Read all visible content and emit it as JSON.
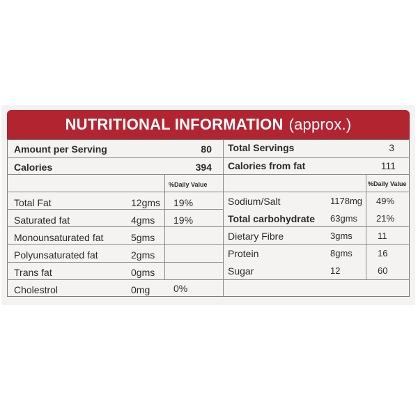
{
  "header": {
    "title": "NUTRITIONAL INFORMATION",
    "suffix": "(approx.)"
  },
  "top": {
    "amount_label": "Amount per Serving",
    "amount_value": "80",
    "calories_label": "Calories",
    "calories_value": "394",
    "servings_label": "Total Servings",
    "servings_value": "3",
    "cal_fat_label": "Calories from fat",
    "cal_fat_value": "111"
  },
  "dv_header": "%Daily Value",
  "left_rows": [
    {
      "name": "Total Fat",
      "qty": "12gms",
      "dv": "19%"
    },
    {
      "name": "Saturated fat",
      "qty": "4gms",
      "dv": "19%"
    },
    {
      "name": "Monounsaturated fat",
      "qty": "5gms",
      "dv": ""
    },
    {
      "name": "Polyunsaturated fat",
      "qty": "2gms",
      "dv": ""
    },
    {
      "name": "Trans fat",
      "qty": "0gms",
      "dv": ""
    },
    {
      "name": "Cholestrol",
      "qty": "0mg",
      "dv": "0%"
    }
  ],
  "right_rows": [
    {
      "name": "Sodium/Salt",
      "qty": "1178mg",
      "dv": "49%"
    },
    {
      "name": "Total carbohydrate",
      "qty": "63gms",
      "dv": "21%"
    },
    {
      "name": "Dietary Fibre",
      "qty": "3gms",
      "dv": "11"
    },
    {
      "name": "Protein",
      "qty": "8gms",
      "dv": "16"
    },
    {
      "name": "Sugar",
      "qty": "12",
      "dv": "60"
    }
  ],
  "colors": {
    "header_bg": "#b22530",
    "panel_bg": "#f4f3f1",
    "text": "#2a2a2a"
  }
}
